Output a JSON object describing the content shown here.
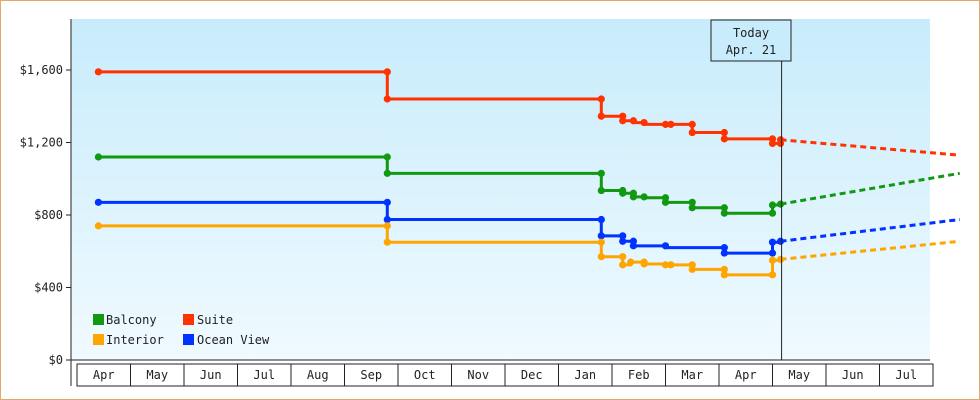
{
  "chart_data": {
    "type": "line",
    "style": "step",
    "y_tick_labels": [
      "$0",
      "$400",
      "$800",
      "$1,200",
      "$1,600"
    ],
    "y_ticks": [
      0,
      400,
      800,
      1200,
      1600
    ],
    "ylim": [
      0,
      1600
    ],
    "x_tick_labels": [
      "Apr",
      "May",
      "Jun",
      "Jul",
      "Aug",
      "Sep",
      "Oct",
      "Nov",
      "Dec",
      "Jan",
      "Feb",
      "Mar",
      "Apr",
      "May",
      "Jun",
      "Jul"
    ],
    "xlim": [
      -0.1,
      16.0
    ],
    "today_marker": {
      "line1": "Today",
      "line2": "Apr. 21",
      "x": 12.67
    },
    "legend_position": "bottom-left",
    "grid": false,
    "background_gradient": [
      "#c8ecfb",
      "#f0faff"
    ],
    "series": [
      {
        "name": "Suite",
        "color": "#ff3300",
        "points": [
          [
            -0.1,
            1590
          ],
          [
            5.3,
            1590
          ],
          [
            5.3,
            1440
          ],
          [
            9.3,
            1440
          ],
          [
            9.3,
            1345
          ],
          [
            9.7,
            1345
          ],
          [
            9.7,
            1320
          ],
          [
            9.9,
            1320
          ],
          [
            9.9,
            1310
          ],
          [
            10.1,
            1310
          ],
          [
            10.1,
            1300
          ],
          [
            10.5,
            1300
          ],
          [
            10.5,
            1300
          ],
          [
            11.0,
            1300
          ],
          [
            11.0,
            1255
          ],
          [
            11.6,
            1255
          ],
          [
            11.6,
            1220
          ],
          [
            12.5,
            1220
          ],
          [
            12.5,
            1195
          ],
          [
            12.65,
            1195
          ],
          [
            12.65,
            1215
          ]
        ],
        "forecast": [
          [
            12.65,
            1215
          ],
          [
            16.0,
            1130
          ]
        ]
      },
      {
        "name": "Balcony",
        "color": "#119911",
        "points": [
          [
            -0.1,
            1120
          ],
          [
            5.3,
            1120
          ],
          [
            5.3,
            1030
          ],
          [
            9.3,
            1030
          ],
          [
            9.3,
            935
          ],
          [
            9.7,
            935
          ],
          [
            9.7,
            920
          ],
          [
            9.9,
            920
          ],
          [
            9.9,
            900
          ],
          [
            10.1,
            900
          ],
          [
            10.1,
            895
          ],
          [
            10.5,
            895
          ],
          [
            10.5,
            870
          ],
          [
            11.0,
            870
          ],
          [
            11.0,
            840
          ],
          [
            11.6,
            840
          ],
          [
            11.6,
            810
          ],
          [
            12.5,
            810
          ],
          [
            12.5,
            855
          ],
          [
            12.65,
            855
          ],
          [
            12.65,
            860
          ]
        ],
        "forecast": [
          [
            12.65,
            860
          ],
          [
            16.0,
            1030
          ]
        ]
      },
      {
        "name": "Ocean View",
        "color": "#0033ff",
        "points": [
          [
            -0.1,
            870
          ],
          [
            5.3,
            870
          ],
          [
            5.3,
            775
          ],
          [
            9.3,
            775
          ],
          [
            9.3,
            685
          ],
          [
            9.7,
            685
          ],
          [
            9.7,
            655
          ],
          [
            9.9,
            655
          ],
          [
            9.9,
            630
          ],
          [
            10.5,
            630
          ],
          [
            10.5,
            620
          ],
          [
            11.6,
            620
          ],
          [
            11.6,
            590
          ],
          [
            12.5,
            590
          ],
          [
            12.5,
            650
          ],
          [
            12.65,
            650
          ],
          [
            12.65,
            655
          ]
        ],
        "forecast": [
          [
            12.65,
            655
          ],
          [
            16.0,
            775
          ]
        ]
      },
      {
        "name": "Interior",
        "color": "#ffa500",
        "points": [
          [
            -0.1,
            740
          ],
          [
            5.3,
            740
          ],
          [
            5.3,
            650
          ],
          [
            9.3,
            650
          ],
          [
            9.3,
            570
          ],
          [
            9.7,
            570
          ],
          [
            9.7,
            525
          ],
          [
            9.85,
            525
          ],
          [
            9.85,
            540
          ],
          [
            10.1,
            540
          ],
          [
            10.1,
            530
          ],
          [
            10.5,
            530
          ],
          [
            10.5,
            525
          ],
          [
            11.0,
            525
          ],
          [
            11.0,
            500
          ],
          [
            11.6,
            500
          ],
          [
            11.6,
            470
          ],
          [
            12.5,
            470
          ],
          [
            12.5,
            550
          ],
          [
            12.65,
            550
          ],
          [
            12.65,
            555
          ]
        ],
        "forecast": [
          [
            12.65,
            555
          ],
          [
            16.0,
            655
          ]
        ]
      }
    ],
    "markers": {
      "Suite": [
        [
          -0.1,
          1590
        ],
        [
          5.3,
          1590
        ],
        [
          5.3,
          1440
        ],
        [
          9.3,
          1440
        ],
        [
          9.3,
          1345
        ],
        [
          9.7,
          1345
        ],
        [
          9.7,
          1320
        ],
        [
          9.9,
          1320
        ],
        [
          10.1,
          1310
        ],
        [
          10.5,
          1300
        ],
        [
          10.6,
          1300
        ],
        [
          11.0,
          1300
        ],
        [
          11.0,
          1255
        ],
        [
          11.6,
          1255
        ],
        [
          11.6,
          1220
        ],
        [
          12.5,
          1220
        ],
        [
          12.5,
          1195
        ],
        [
          12.65,
          1195
        ],
        [
          12.65,
          1215
        ]
      ],
      "Balcony": [
        [
          -0.1,
          1120
        ],
        [
          5.3,
          1120
        ],
        [
          5.3,
          1030
        ],
        [
          9.3,
          1030
        ],
        [
          9.3,
          935
        ],
        [
          9.7,
          935
        ],
        [
          9.7,
          920
        ],
        [
          9.9,
          920
        ],
        [
          9.9,
          900
        ],
        [
          10.1,
          900
        ],
        [
          10.5,
          895
        ],
        [
          10.5,
          870
        ],
        [
          11.0,
          870
        ],
        [
          11.0,
          840
        ],
        [
          11.6,
          840
        ],
        [
          11.6,
          810
        ],
        [
          12.5,
          810
        ],
        [
          12.5,
          855
        ],
        [
          12.65,
          860
        ]
      ],
      "Ocean View": [
        [
          -0.1,
          870
        ],
        [
          5.3,
          870
        ],
        [
          5.3,
          775
        ],
        [
          9.3,
          775
        ],
        [
          9.3,
          685
        ],
        [
          9.7,
          685
        ],
        [
          9.7,
          655
        ],
        [
          9.9,
          655
        ],
        [
          9.9,
          630
        ],
        [
          10.5,
          630
        ],
        [
          11.6,
          620
        ],
        [
          11.6,
          590
        ],
        [
          12.5,
          590
        ],
        [
          12.5,
          650
        ],
        [
          12.65,
          655
        ]
      ],
      "Interior": [
        [
          -0.1,
          740
        ],
        [
          5.3,
          740
        ],
        [
          5.3,
          650
        ],
        [
          9.3,
          650
        ],
        [
          9.3,
          570
        ],
        [
          9.7,
          570
        ],
        [
          9.7,
          525
        ],
        [
          9.85,
          540
        ],
        [
          10.1,
          540
        ],
        [
          10.1,
          530
        ],
        [
          10.5,
          525
        ],
        [
          10.6,
          525
        ],
        [
          11.0,
          525
        ],
        [
          11.0,
          500
        ],
        [
          11.6,
          500
        ],
        [
          11.6,
          470
        ],
        [
          12.5,
          470
        ],
        [
          12.5,
          550
        ],
        [
          12.65,
          555
        ]
      ]
    },
    "legend": [
      {
        "name": "Balcony",
        "color": "#119911"
      },
      {
        "name": "Suite",
        "color": "#ff3300"
      },
      {
        "name": "Interior",
        "color": "#ffa500"
      },
      {
        "name": "Ocean View",
        "color": "#0033ff"
      }
    ]
  }
}
